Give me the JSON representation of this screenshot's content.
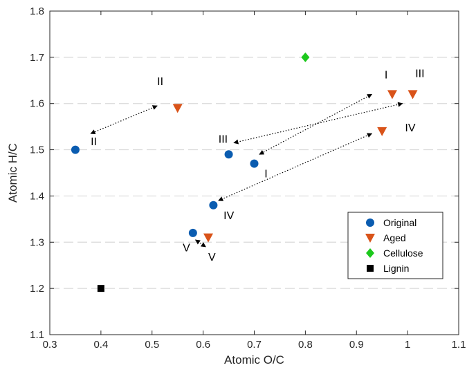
{
  "chart_data": {
    "type": "scatter",
    "xlabel": "Atomic O/C",
    "ylabel": "Atomic H/C",
    "xlim": [
      0.3,
      1.1
    ],
    "ylim": [
      1.1,
      1.8
    ],
    "xticks": [
      "0.3",
      "0.4",
      "0.5",
      "0.6",
      "0.7",
      "0.8",
      "0.9",
      "1",
      "1.1"
    ],
    "yticks": [
      "1.1",
      "1.2",
      "1.3",
      "1.4",
      "1.5",
      "1.6",
      "1.7",
      "1.8"
    ],
    "grid": "horizontal dashed",
    "legend_position": "bottom-right",
    "series": [
      {
        "name": "Original",
        "marker": "circle",
        "color": "#0a5cb0",
        "points": [
          {
            "x": 0.35,
            "y": 1.5
          },
          {
            "x": 0.65,
            "y": 1.49
          },
          {
            "x": 0.7,
            "y": 1.47
          },
          {
            "x": 0.62,
            "y": 1.38
          },
          {
            "x": 0.58,
            "y": 1.32
          }
        ]
      },
      {
        "name": "Aged",
        "marker": "triangle-down",
        "color": "#d95319",
        "points": [
          {
            "x": 0.55,
            "y": 1.59
          },
          {
            "x": 0.97,
            "y": 1.62
          },
          {
            "x": 1.01,
            "y": 1.62
          },
          {
            "x": 0.95,
            "y": 1.54
          },
          {
            "x": 0.61,
            "y": 1.31
          }
        ]
      },
      {
        "name": "Cellulose",
        "marker": "diamond",
        "color": "#1cc81c",
        "points": [
          {
            "x": 0.8,
            "y": 1.7
          }
        ]
      },
      {
        "name": "Lignin",
        "marker": "square",
        "color": "#000000",
        "points": [
          {
            "x": 0.4,
            "y": 1.2
          }
        ]
      }
    ],
    "annotations": [
      {
        "text": "II",
        "x": 0.38,
        "y": 1.51
      },
      {
        "text": "II",
        "x": 0.51,
        "y": 1.64
      },
      {
        "text": "III",
        "x": 0.63,
        "y": 1.515
      },
      {
        "text": "I",
        "x": 0.72,
        "y": 1.44
      },
      {
        "text": "IV",
        "x": 0.64,
        "y": 1.35
      },
      {
        "text": "V",
        "x": 0.56,
        "y": 1.28
      },
      {
        "text": "V",
        "x": 0.61,
        "y": 1.26
      },
      {
        "text": "I",
        "x": 0.955,
        "y": 1.654
      },
      {
        "text": "III",
        "x": 1.015,
        "y": 1.657
      },
      {
        "text": "IV",
        "x": 0.995,
        "y": 1.54
      }
    ],
    "arrows": [
      {
        "from": [
          0.51,
          1.595
        ],
        "to": [
          0.38,
          1.535
        ]
      },
      {
        "from": [
          0.93,
          1.62
        ],
        "to": [
          0.71,
          1.49
        ]
      },
      {
        "from": [
          0.99,
          1.6
        ],
        "to": [
          0.66,
          1.515
        ]
      },
      {
        "from": [
          0.93,
          1.535
        ],
        "to": [
          0.63,
          1.39
        ]
      },
      {
        "from": [
          0.585,
          1.305
        ],
        "to": [
          0.605,
          1.29
        ]
      }
    ]
  }
}
